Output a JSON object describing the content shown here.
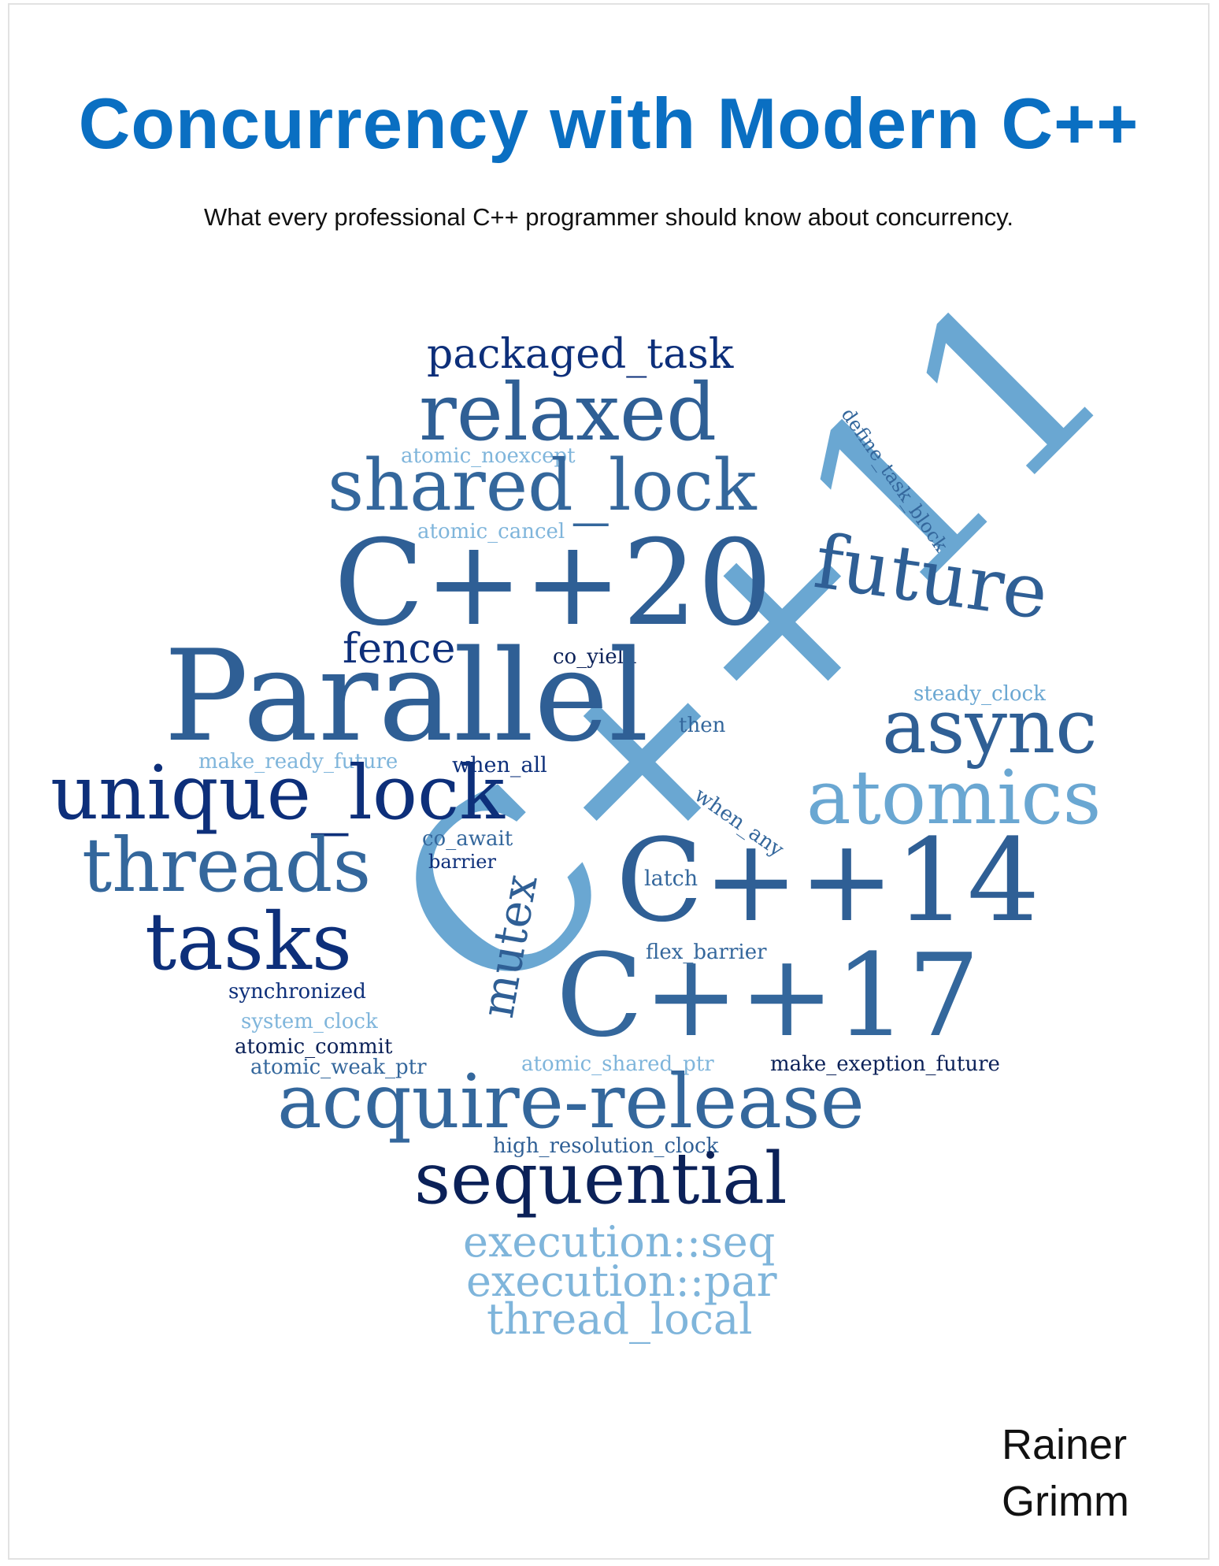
{
  "title": "Concurrency with Modern C++",
  "subtitle": "What every professional C++ programmer should know about concurrency.",
  "author": {
    "first_name": "Rainer",
    "last_name": "Grimm"
  },
  "colors": {
    "title": "#0a6fc2",
    "navy": "#0d2f7a",
    "dark_navy": "#0b2158",
    "mid_blue": "#2f5f95",
    "steel_blue": "#34679c",
    "light_blue": "#6aa7d2",
    "sky_blue": "#7fb5db"
  },
  "word_cloud": {
    "packaged_task": "packaged_task",
    "relaxed": "relaxed",
    "atomic_noexcept": "atomic_noexcept",
    "shared_lock": "shared_lock",
    "atomic_cancel": "atomic_cancel",
    "define_task_block": "define_task_block",
    "cpp20": "C++20",
    "future": "future",
    "fence": "fence",
    "co_yield": "co_yield",
    "cpp11": "C++11",
    "parallel": "Parallel",
    "then": "then",
    "steady_clock": "steady_clock",
    "async": "async",
    "make_ready_future": "make_ready_future",
    "when_all": "when_all",
    "unique_lock": "unique_lock",
    "atomics": "atomics",
    "when_any": "when_any",
    "co_await": "co_await",
    "threads": "threads",
    "barrier": "barrier",
    "latch": "latch",
    "cpp14": "C++14",
    "mutex": "mutex",
    "tasks": "tasks",
    "flex_barrier": "flex_barrier",
    "cpp17": "C++17",
    "synchronized": "synchronized",
    "system_clock": "system_clock",
    "atomic_commit": "atomic_commit",
    "atomic_weak_ptr": "atomic_weak_ptr",
    "atomic_shared_ptr": "atomic_shared_ptr",
    "make_exeption_future": "make_exeption_future",
    "acquire_release": "acquire-release",
    "high_resolution_clock": "high_resolution_clock",
    "sequential": "sequential",
    "execution_seq": "execution::seq",
    "execution_par": "execution::par",
    "thread_local": "thread_local"
  }
}
